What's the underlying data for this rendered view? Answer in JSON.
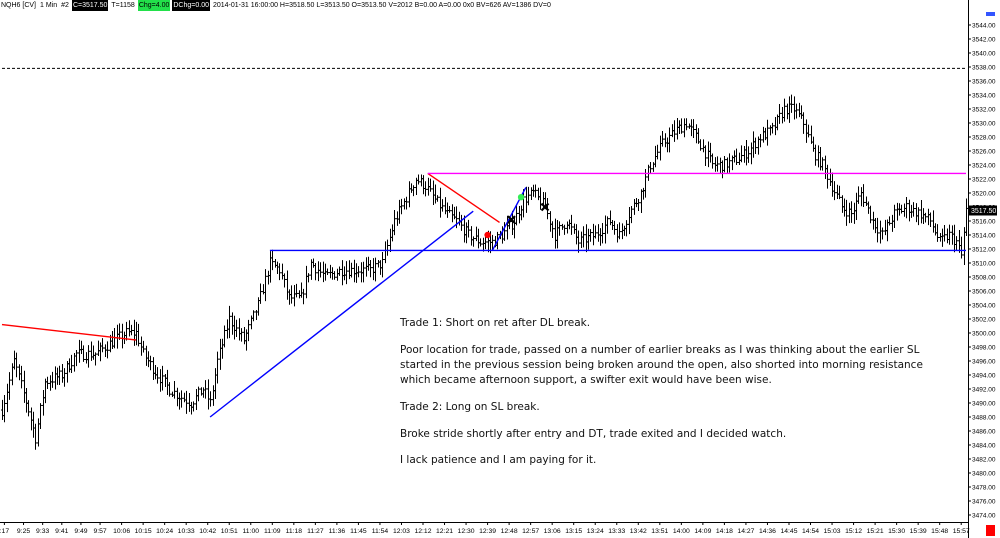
{
  "header": {
    "symbol": "NQH6 [CV]",
    "interval": "1 Min",
    "chart_no": "#2",
    "close": "C=3517.50",
    "ticks": "T=1158",
    "change": "Chg=4.00",
    "dchange": "DChg=0.00",
    "bar_info": "2014-01-31 16:00:00 H=3518.50 L=3513.50 O=3513.50 V=2012 B=0.00 A=0.00 0x0 BV=626 AV=1386 DV=0"
  },
  "last_price_label": "3517.50",
  "annotation": {
    "trade1": "Trade 1:  Short on ret after DL break.",
    "comment1": "Poor location for trade, passed on a number of earlier breaks as I was thinking about the earlier SL started in the previous session being broken around the open, also shorted into morning resistance which became afternoon support, a swifter exit would have been wise.",
    "trade2": "Trade 2:  Long on SL break.",
    "comment2": "Broke stride shortly after entry and DT, trade exited and I decided watch.",
    "comment3": "I lack patience and I am paying for it."
  },
  "colors": {
    "price_bars": "#000000",
    "red_line": "#ff0000",
    "blue_line": "#0000ff",
    "magenta_line": "#ff00ff",
    "entry_red": "#ff0000",
    "entry_green": "#33ee55",
    "exit_marker": "#000000",
    "scale_red": "#ff0000",
    "scale_blue": "#3355ff"
  },
  "icons": {
    "entry_marker": "filled-circle",
    "exit_marker": "x-cross"
  },
  "chart_data": {
    "type": "ohlc",
    "title": "",
    "xlabel": "",
    "ylabel": "",
    "ylim": [
      3473.0,
      3546.0
    ],
    "y_ticks": [
      3474,
      3476,
      3478,
      3480,
      3482,
      3484,
      3486,
      3488,
      3490,
      3492,
      3494,
      3496,
      3498,
      3500,
      3502,
      3504,
      3506,
      3508,
      3510,
      3512,
      3514,
      3516,
      3518,
      3520,
      3522,
      3524,
      3526,
      3528,
      3530,
      3532,
      3534,
      3536,
      3538,
      3540,
      3542,
      3544
    ],
    "y_tick_labels": [
      "3474.00",
      "3476.00",
      "3478.00",
      "3480.00",
      "3482.00",
      "3484.00",
      "3486.00",
      "3488.00",
      "3490.00",
      "3492.00",
      "3494.00",
      "3496.00",
      "3498.00",
      "3500.00",
      "3502.00",
      "3504.00",
      "3506.00",
      "3508.00",
      "3510.00",
      "3512.00",
      "3514.00",
      "3516.00",
      "3518.00",
      "3520.00",
      "3522.00",
      "3524.00",
      "3526.00",
      "3528.00",
      "3530.00",
      "3532.00",
      "3534.00",
      "3536.00",
      "3538.00",
      "3540.00",
      "3542.00",
      "3544.00"
    ],
    "x_range": [
      "09:16",
      "15:59"
    ],
    "x_tick_labels": [
      ":17",
      "9:25",
      "9:33",
      "9:41",
      "9:49",
      "9:57",
      "10:06",
      "10:15",
      "10:24",
      "10:33",
      "10:42",
      "10:51",
      "11:00",
      "11:09",
      "11:18",
      "11:27",
      "11:36",
      "11:45",
      "11:54",
      "12:03",
      "12:12",
      "12:21",
      "12:30",
      "12:39",
      "12:48",
      "12:57",
      "13:06",
      "13:15",
      "13:24",
      "13:33",
      "13:42",
      "13:51",
      "14:00",
      "14:09",
      "14:18",
      "14:27",
      "14:36",
      "14:45",
      "14:54",
      "15:03",
      "15:12",
      "15:21",
      "15:30",
      "15:39",
      "15:48",
      "15:57"
    ],
    "x_tick_times": [
      "09:17",
      "09:25",
      "09:33",
      "09:41",
      "09:49",
      "09:57",
      "10:06",
      "10:15",
      "10:24",
      "10:33",
      "10:42",
      "10:51",
      "11:00",
      "11:09",
      "11:18",
      "11:27",
      "11:36",
      "11:45",
      "11:54",
      "12:03",
      "12:12",
      "12:21",
      "12:30",
      "12:39",
      "12:48",
      "12:57",
      "13:06",
      "13:15",
      "13:24",
      "13:33",
      "13:42",
      "13:51",
      "14:00",
      "14:09",
      "14:18",
      "14:27",
      "14:36",
      "14:45",
      "14:54",
      "15:03",
      "15:12",
      "15:21",
      "15:30",
      "15:39",
      "15:48",
      "15:57"
    ],
    "close_anchors": [
      [
        "09:16",
        3489
      ],
      [
        "09:21",
        3496
      ],
      [
        "09:27",
        3489
      ],
      [
        "09:30",
        3485
      ],
      [
        "09:34",
        3493
      ],
      [
        "09:41",
        3494
      ],
      [
        "09:47",
        3497
      ],
      [
        "09:55",
        3497
      ],
      [
        "10:03",
        3499
      ],
      [
        "10:08",
        3500
      ],
      [
        "10:12",
        3500
      ],
      [
        "10:15",
        3497
      ],
      [
        "10:21",
        3494
      ],
      [
        "10:26",
        3492
      ],
      [
        "10:30",
        3491
      ],
      [
        "10:35",
        3490
      ],
      [
        "10:40",
        3492
      ],
      [
        "10:43",
        3490
      ],
      [
        "10:46",
        3496
      ],
      [
        "10:51",
        3502
      ],
      [
        "10:57",
        3499
      ],
      [
        "11:03",
        3504
      ],
      [
        "11:08",
        3510
      ],
      [
        "11:12",
        3509
      ],
      [
        "11:16",
        3505
      ],
      [
        "11:21",
        3505
      ],
      [
        "11:25",
        3510
      ],
      [
        "11:31",
        3508
      ],
      [
        "11:38",
        3509
      ],
      [
        "11:44",
        3509
      ],
      [
        "11:50",
        3509
      ],
      [
        "11:55",
        3510
      ],
      [
        "12:00",
        3516
      ],
      [
        "12:06",
        3520
      ],
      [
        "12:09",
        3522
      ],
      [
        "12:13",
        3521
      ],
      [
        "12:17",
        3519
      ],
      [
        "12:22",
        3517
      ],
      [
        "12:26",
        3516
      ],
      [
        "12:31",
        3514
      ],
      [
        "12:36",
        3513
      ],
      [
        "12:41",
        3513
      ],
      [
        "12:45",
        3514
      ],
      [
        "12:50",
        3516
      ],
      [
        "12:54",
        3519
      ],
      [
        "12:58",
        3520
      ],
      [
        "13:03",
        3518
      ],
      [
        "13:07",
        3514
      ],
      [
        "13:12",
        3516
      ],
      [
        "13:17",
        3513
      ],
      [
        "13:24",
        3514
      ],
      [
        "13:30",
        3516
      ],
      [
        "13:34",
        3514
      ],
      [
        "13:38",
        3517
      ],
      [
        "13:43",
        3520
      ],
      [
        "13:47",
        3524
      ],
      [
        "13:52",
        3527
      ],
      [
        "13:58",
        3529
      ],
      [
        "14:02",
        3530
      ],
      [
        "14:08",
        3527
      ],
      [
        "14:13",
        3524
      ],
      [
        "14:18",
        3524
      ],
      [
        "14:24",
        3525
      ],
      [
        "14:28",
        3526
      ],
      [
        "14:33",
        3528
      ],
      [
        "14:38",
        3529
      ],
      [
        "14:43",
        3532
      ],
      [
        "14:47",
        3532
      ],
      [
        "14:51",
        3530
      ],
      [
        "14:55",
        3526
      ],
      [
        "14:59",
        3524
      ],
      [
        "15:03",
        3521
      ],
      [
        "15:07",
        3518
      ],
      [
        "15:11",
        3517
      ],
      [
        "15:15",
        3520
      ],
      [
        "15:20",
        3516
      ],
      [
        "15:24",
        3514
      ],
      [
        "15:29",
        3517
      ],
      [
        "15:34",
        3518
      ],
      [
        "15:40",
        3517
      ],
      [
        "15:44",
        3516
      ],
      [
        "15:48",
        3513
      ],
      [
        "15:52",
        3514
      ],
      [
        "15:55",
        3513
      ],
      [
        "15:57",
        3511
      ],
      [
        "15:59",
        3517.5
      ]
    ],
    "lines": [
      {
        "name": "",
        "color": "red",
        "points": [
          [
            "09:16",
            3501.2
          ],
          [
            "10:12",
            3499.0
          ]
        ]
      },
      {
        "name": "",
        "color": "red",
        "points": [
          [
            "12:14",
            3522.8
          ],
          [
            "12:44",
            3515.8
          ]
        ]
      },
      {
        "name": "",
        "color": "blue",
        "points": [
          [
            "10:43",
            3488.0
          ],
          [
            "12:33",
            3517.4
          ]
        ]
      },
      {
        "name": "",
        "color": "blue",
        "points": [
          [
            "11:08",
            3511.8
          ],
          [
            "15:59",
            3511.8
          ]
        ]
      },
      {
        "name": "",
        "color": "blue",
        "points": [
          [
            "12:41",
            3511.8
          ],
          [
            "12:55",
            3520.8
          ]
        ]
      },
      {
        "name": "",
        "color": "magenta",
        "points": [
          [
            "12:14",
            3522.8
          ],
          [
            "15:59",
            3522.8
          ]
        ]
      },
      {
        "name": "",
        "color": "red",
        "dashed": true,
        "points": [
          [
            "09:16",
            3537.8
          ],
          [
            "15:59",
            3537.8
          ]
        ]
      }
    ],
    "markers": [
      {
        "type": "entry",
        "color": "red",
        "time": "12:39",
        "price": 3514.0
      },
      {
        "type": "exit",
        "time": "12:49",
        "price": 3516.2
      },
      {
        "type": "entry",
        "color": "green",
        "time": "12:53",
        "price": 3519.4
      },
      {
        "type": "exit",
        "time": "13:03",
        "price": 3518.0
      }
    ],
    "grid": false,
    "legend": "none"
  }
}
